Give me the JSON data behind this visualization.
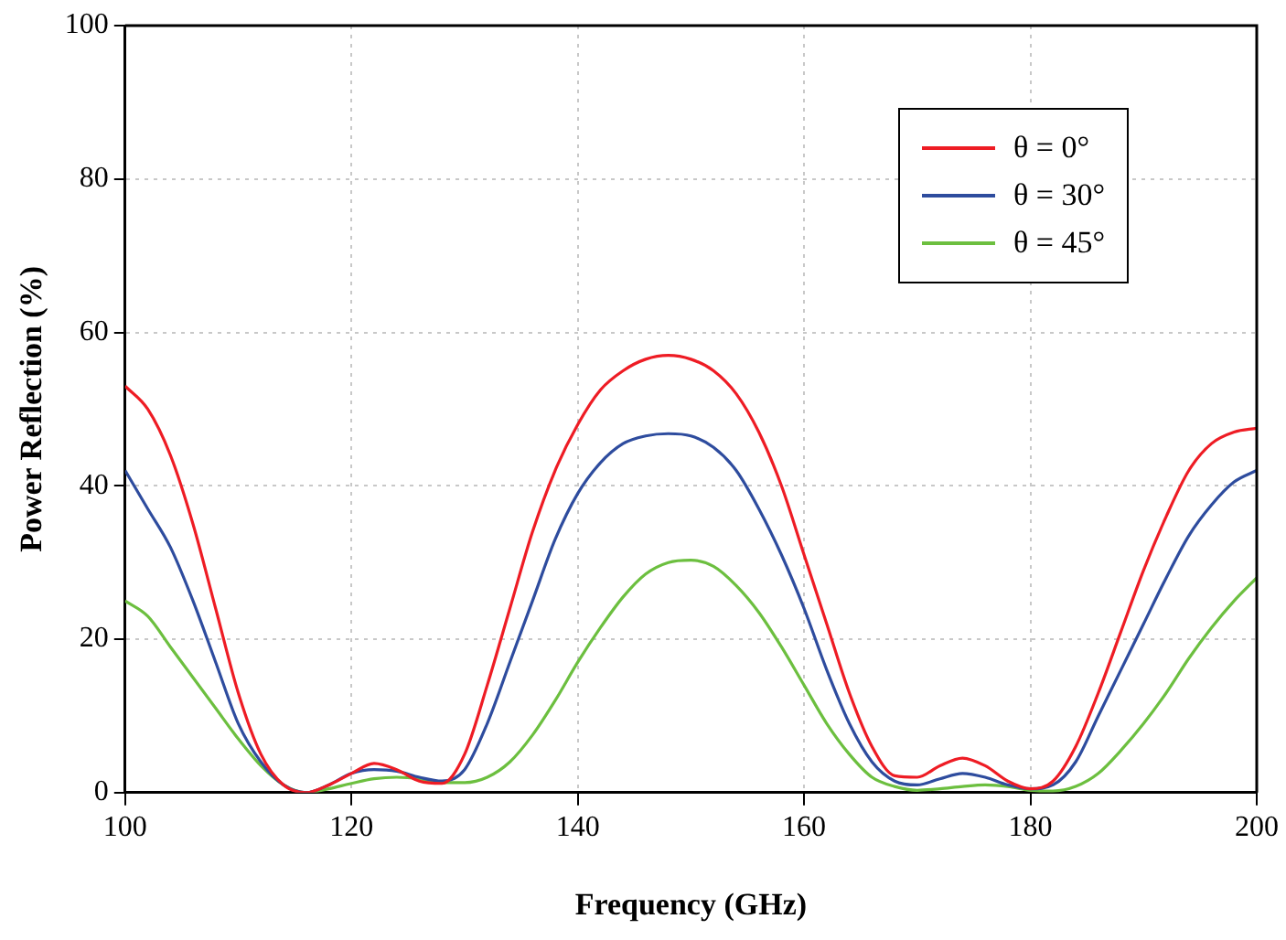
{
  "chart_data": {
    "type": "line",
    "xlabel": "Frequency (GHz)",
    "ylabel": "Power Reflection (%)",
    "x": [
      100,
      102,
      104,
      106,
      108,
      110,
      112,
      114,
      116,
      118,
      120,
      122,
      124,
      126,
      128,
      130,
      132,
      134,
      136,
      138,
      140,
      142,
      144,
      146,
      148,
      150,
      152,
      154,
      156,
      158,
      160,
      162,
      164,
      166,
      168,
      170,
      172,
      174,
      176,
      178,
      180,
      182,
      184,
      186,
      188,
      190,
      192,
      194,
      196,
      198,
      200
    ],
    "series": [
      {
        "name": "θ = 0°",
        "color": "#ee1c24",
        "values": [
          53,
          50,
          44,
          35,
          24,
          13,
          5,
          1,
          0,
          1,
          2.5,
          3.8,
          3,
          1.5,
          1.2,
          5,
          14,
          24,
          34,
          42,
          48,
          52.5,
          55,
          56.5,
          57,
          56.5,
          55,
          52,
          47,
          40,
          31,
          22,
          13,
          6,
          2.2,
          2,
          3.5,
          4.5,
          3.5,
          1.5,
          0.5,
          1.5,
          6,
          13,
          21,
          29,
          36,
          42,
          45.5,
          47,
          47.5
        ]
      },
      {
        "name": "θ = 30°",
        "color": "#2e4c9e",
        "values": [
          42,
          37,
          32,
          25,
          17,
          9,
          4,
          1,
          0,
          1,
          2.5,
          3,
          2.8,
          2,
          1.5,
          3,
          9,
          17,
          25,
          33,
          39,
          43,
          45.5,
          46.5,
          46.8,
          46.5,
          45,
          42,
          37,
          31,
          24,
          16,
          9,
          4,
          1.5,
          1,
          1.8,
          2.5,
          2,
          1,
          0.5,
          1,
          4,
          10,
          16,
          22,
          28,
          33.5,
          37.5,
          40.5,
          42
        ]
      },
      {
        "name": "θ = 45°",
        "color": "#6cbf3f",
        "values": [
          25,
          23,
          19,
          15,
          11,
          7,
          3.5,
          1,
          0,
          0.5,
          1.2,
          1.8,
          2,
          1.8,
          1.3,
          1.3,
          2,
          4,
          7.5,
          12,
          17,
          21.5,
          25.5,
          28.5,
          30,
          30.3,
          29.5,
          27,
          23.5,
          19,
          14,
          9,
          5,
          2,
          0.8,
          0.3,
          0.5,
          0.8,
          1,
          0.8,
          0.3,
          0.2,
          0.8,
          2.5,
          5.5,
          9,
          13,
          17.5,
          21.5,
          25,
          28
        ]
      }
    ],
    "xlim": [
      100,
      200
    ],
    "xticks": [
      100,
      120,
      140,
      160,
      180,
      200
    ],
    "ylim": [
      0,
      100
    ],
    "yticks": [
      0,
      20,
      40,
      60,
      80,
      100
    ],
    "grid": true,
    "legend": "top right",
    "marker": "none",
    "line_style": "solid"
  }
}
